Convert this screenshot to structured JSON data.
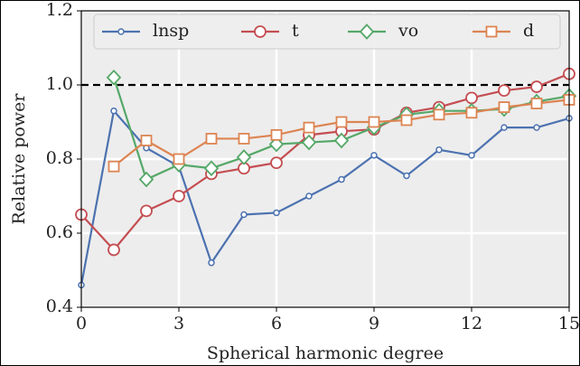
{
  "chart_data": {
    "type": "line",
    "x_label": "Spherical harmonic degree",
    "y_label": "Relative power",
    "x": [
      0,
      1,
      2,
      3,
      4,
      5,
      6,
      7,
      8,
      9,
      10,
      11,
      12,
      13,
      14,
      15
    ],
    "series": [
      {
        "name": "lnsp",
        "color": "#4c72b0",
        "marker": "small-circle",
        "values": [
          0.46,
          0.93,
          0.83,
          0.78,
          0.52,
          0.65,
          0.655,
          0.7,
          0.745,
          0.81,
          0.755,
          0.825,
          0.81,
          0.885,
          0.885,
          0.91
        ]
      },
      {
        "name": "t",
        "color": "#c44e52",
        "marker": "circle",
        "values": [
          0.65,
          0.555,
          0.66,
          0.7,
          0.76,
          0.775,
          0.79,
          0.865,
          0.875,
          0.88,
          0.925,
          0.94,
          0.965,
          0.985,
          0.995,
          1.03
        ]
      },
      {
        "name": "vo",
        "color": "#55a868",
        "marker": "diamond",
        "values": [
          null,
          1.02,
          0.745,
          0.785,
          0.775,
          0.805,
          0.84,
          0.845,
          0.85,
          0.885,
          0.92,
          0.93,
          0.93,
          0.935,
          0.955,
          0.97
        ]
      },
      {
        "name": "d",
        "color": "#dd8452",
        "marker": "square",
        "values": [
          null,
          0.78,
          0.85,
          0.8,
          0.855,
          0.855,
          0.865,
          0.885,
          0.9,
          0.9,
          0.905,
          0.92,
          0.925,
          0.94,
          0.95,
          0.96
        ]
      }
    ],
    "reference_line": 1.0,
    "xlim": [
      0,
      15
    ],
    "ylim": [
      0.4,
      1.2
    ],
    "xticks": [
      0,
      3,
      6,
      9,
      12,
      15
    ],
    "yticks": [
      0.4,
      0.6,
      0.8,
      {
        "value": 1.0,
        "label": "1.0"
      },
      1.2
    ],
    "grid": true,
    "legend": "top"
  }
}
